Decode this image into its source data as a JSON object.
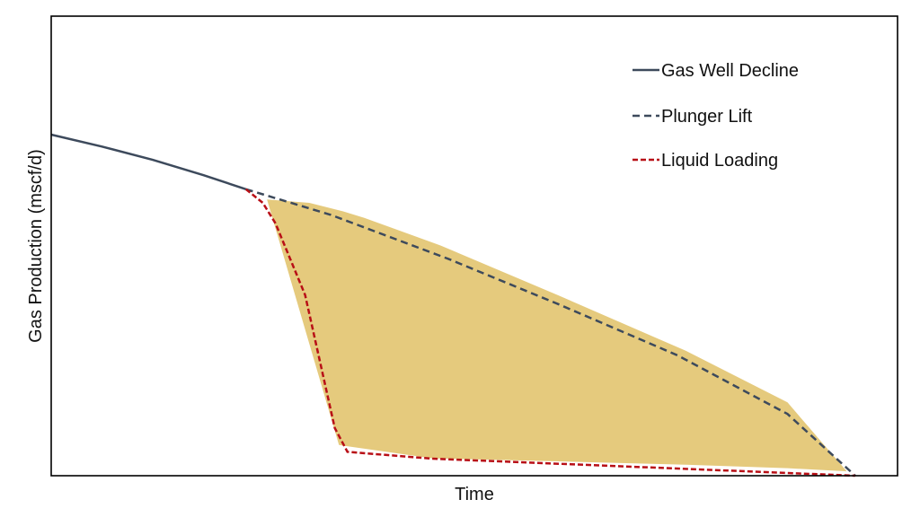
{
  "chart_data": {
    "type": "line",
    "title": "",
    "xlabel": "Time",
    "ylabel": "Gas Production (mscf/d)",
    "xlim": [
      0,
      100
    ],
    "ylim": [
      0,
      100
    ],
    "grid": false,
    "legend_position": "top-right",
    "series": [
      {
        "name": "Gas Well Decline",
        "color": "#3d4a5c",
        "style": "solid",
        "x": [
          0,
          6,
          12,
          18,
          23
        ],
        "y": [
          100,
          96.5,
          92.6,
          88.1,
          84
        ]
      },
      {
        "name": "Plunger Lift",
        "color": "#3d4a5c",
        "style": "dashed",
        "x": [
          23,
          33,
          47,
          60,
          74,
          87,
          95
        ],
        "y": [
          84,
          76.5,
          63.5,
          50.2,
          35.3,
          18.1,
          0
        ]
      },
      {
        "name": "Liquid Loading",
        "color": "#b80f16",
        "style": "dashed",
        "x": [
          23,
          25,
          26.5,
          30,
          33.5,
          35,
          45,
          60,
          80,
          95
        ],
        "y": [
          84,
          80,
          74,
          53,
          14,
          7,
          5,
          3.5,
          1.5,
          0
        ]
      }
    ],
    "shaded_area": {
      "color": "#e3c572",
      "x": [
        25.5,
        30.5,
        34.5,
        37,
        46,
        60,
        75,
        87,
        94,
        87,
        75,
        60,
        45,
        34,
        25.5
      ],
      "y": [
        81,
        80,
        77.5,
        75.6,
        67.5,
        52.8,
        36.6,
        21.5,
        1.3,
        2.2,
        3.2,
        4.2,
        5.1,
        9,
        81
      ]
    }
  }
}
